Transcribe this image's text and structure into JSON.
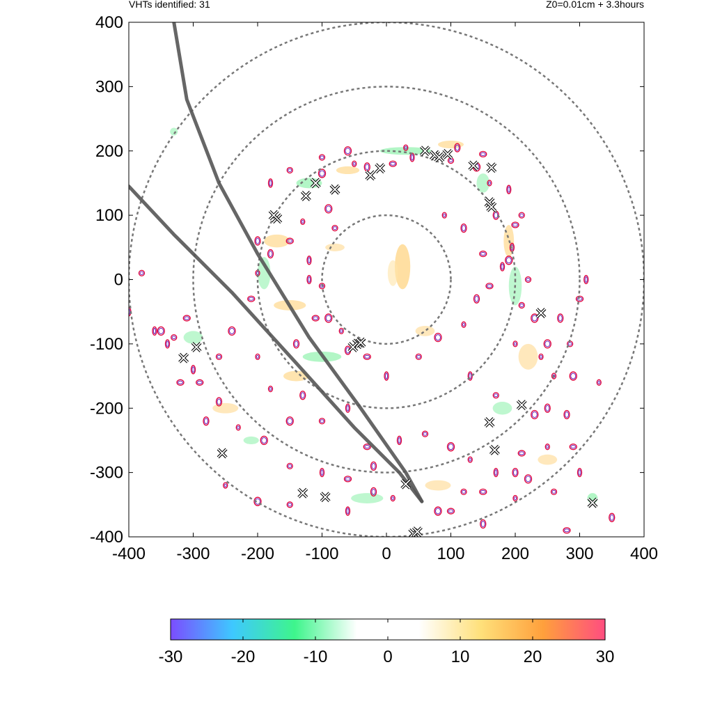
{
  "header": {
    "left_text": "VHTs identified: 31",
    "right_text": "Z0=0.01cm  + 3.3hours"
  },
  "chart_data": {
    "type": "scatter",
    "title": "",
    "xlabel": "",
    "ylabel": "",
    "xlim": [
      -400,
      400
    ],
    "ylim": [
      -400,
      400
    ],
    "x_ticks": [
      "-400",
      "-300",
      "-200",
      "-100",
      "0",
      "100",
      "200",
      "300",
      "400"
    ],
    "y_ticks": [
      "400",
      "300",
      "200",
      "100",
      "0",
      "-100",
      "-200",
      "-300",
      "-400"
    ],
    "grid": false,
    "range_rings": [
      100,
      200,
      300,
      400
    ],
    "tracks": [
      {
        "points": [
          [
            -330,
            400
          ],
          [
            -310,
            280
          ],
          [
            -260,
            150
          ],
          [
            -200,
            40
          ],
          [
            -120,
            -90
          ],
          [
            -40,
            -200
          ],
          [
            30,
            -300
          ],
          [
            55,
            -345
          ]
        ]
      },
      {
        "points": [
          [
            -400,
            145
          ],
          [
            -330,
            70
          ],
          [
            -240,
            -20
          ],
          [
            -140,
            -130
          ],
          [
            -50,
            -230
          ],
          [
            20,
            -300
          ],
          [
            55,
            -345
          ]
        ]
      }
    ],
    "vht_count": 31,
    "vht_markers": [
      [
        75,
        193
      ],
      [
        82,
        190
      ],
      [
        95,
        195
      ],
      [
        135,
        177
      ],
      [
        163,
        174
      ],
      [
        160,
        120
      ],
      [
        163,
        113
      ],
      [
        -25,
        162
      ],
      [
        -10,
        173
      ],
      [
        -80,
        140
      ],
      [
        -110,
        150
      ],
      [
        -125,
        130
      ],
      [
        -170,
        95
      ],
      [
        240,
        -52
      ],
      [
        -45,
        -100
      ],
      [
        -52,
        -105
      ],
      [
        -295,
        -105
      ],
      [
        -315,
        -122
      ],
      [
        210,
        -195
      ],
      [
        160,
        -222
      ],
      [
        168,
        -265
      ],
      [
        -255,
        -270
      ],
      [
        -130,
        -332
      ],
      [
        -95,
        -338
      ],
      [
        30,
        -318
      ],
      [
        320,
        -347
      ],
      [
        42,
        -395
      ],
      [
        48,
        -392
      ],
      [
        -40,
        -98
      ],
      [
        60,
        200
      ],
      [
        -175,
        100
      ]
    ],
    "contours": [
      [
        -50,
        180
      ],
      [
        -30,
        175
      ],
      [
        10,
        180
      ],
      [
        40,
        190
      ],
      [
        100,
        185
      ],
      [
        140,
        175
      ],
      [
        160,
        150
      ],
      [
        170,
        100
      ],
      [
        200,
        85
      ],
      [
        195,
        50
      ],
      [
        210,
        -40
      ],
      [
        230,
        -60
      ],
      [
        240,
        -120
      ],
      [
        250,
        -200
      ],
      [
        210,
        -270
      ],
      [
        170,
        -300
      ],
      [
        120,
        -330
      ],
      [
        80,
        -360
      ],
      [
        10,
        -340
      ],
      [
        -20,
        -330
      ],
      [
        -60,
        -310
      ],
      [
        -100,
        -300
      ],
      [
        -150,
        -290
      ],
      [
        -190,
        -250
      ],
      [
        -230,
        -230
      ],
      [
        -260,
        -190
      ],
      [
        -290,
        -160
      ],
      [
        -300,
        -140
      ],
      [
        -330,
        -90
      ],
      [
        -350,
        -80
      ],
      [
        -200,
        10
      ],
      [
        -180,
        40
      ],
      [
        -150,
        60
      ],
      [
        -120,
        30
      ],
      [
        -100,
        -10
      ],
      [
        -90,
        -60
      ],
      [
        -70,
        -80
      ],
      [
        -60,
        -110
      ],
      [
        -30,
        -120
      ],
      [
        0,
        -150
      ],
      [
        50,
        -120
      ],
      [
        80,
        -90
      ],
      [
        120,
        -70
      ],
      [
        140,
        -30
      ],
      [
        160,
        -10
      ],
      [
        180,
        20
      ],
      [
        220,
        0
      ],
      [
        250,
        -100
      ],
      [
        260,
        -150
      ],
      [
        280,
        -210
      ],
      [
        290,
        -260
      ],
      [
        300,
        -300
      ],
      [
        260,
        -330
      ],
      [
        220,
        -310
      ],
      [
        200,
        -340
      ],
      [
        150,
        -380
      ],
      [
        100,
        -360
      ],
      [
        -60,
        -360
      ],
      [
        -150,
        -350
      ],
      [
        -200,
        -345
      ],
      [
        -250,
        -320
      ],
      [
        -280,
        -220
      ],
      [
        -320,
        -160
      ],
      [
        -360,
        -80
      ],
      [
        -150,
        170
      ],
      [
        -100,
        165
      ],
      [
        30,
        205
      ],
      [
        110,
        205
      ],
      [
        150,
        195
      ],
      [
        190,
        140
      ],
      [
        210,
        100
      ],
      [
        190,
        30
      ],
      [
        200,
        -100
      ],
      [
        270,
        -60
      ],
      [
        300,
        -30
      ],
      [
        310,
        0
      ],
      [
        285,
        -100
      ],
      [
        290,
        -150
      ],
      [
        330,
        -160
      ],
      [
        350,
        -370
      ],
      [
        280,
        -390
      ],
      [
        -60,
        -200
      ],
      [
        -100,
        -220
      ],
      [
        -150,
        -220
      ],
      [
        -180,
        -170
      ],
      [
        -130,
        -180
      ],
      [
        -30,
        -260
      ],
      [
        20,
        -250
      ],
      [
        60,
        -240
      ],
      [
        100,
        -260
      ],
      [
        130,
        -280
      ],
      [
        -20,
        -290
      ],
      [
        -310,
        -60
      ],
      [
        -340,
        -100
      ],
      [
        -260,
        -120
      ],
      [
        -240,
        -80
      ],
      [
        -200,
        -120
      ],
      [
        -140,
        -100
      ],
      [
        -110,
        -60
      ],
      [
        -120,
        0
      ],
      [
        -80,
        80
      ],
      [
        -90,
        110
      ],
      [
        -130,
        90
      ],
      [
        -200,
        60
      ],
      [
        -210,
        -30
      ],
      [
        -180,
        150
      ],
      [
        -100,
        190
      ],
      [
        -60,
        200
      ],
      [
        90,
        100
      ],
      [
        120,
        80
      ],
      [
        150,
        40
      ],
      [
        130,
        -150
      ],
      [
        170,
        -180
      ],
      [
        230,
        -210
      ],
      [
        250,
        -260
      ],
      [
        200,
        -300
      ],
      [
        150,
        -330
      ],
      [
        -400,
        -50
      ],
      [
        -380,
        10
      ]
    ],
    "shading": [
      [
        25,
        20,
        12,
        35,
        "#ffd27a",
        0.7
      ],
      [
        10,
        10,
        8,
        20,
        "#ffe4a8",
        0.6
      ],
      [
        -120,
        150,
        20,
        8,
        "#7ef0a0",
        0.6
      ],
      [
        -60,
        170,
        18,
        6,
        "#ffd27a",
        0.6
      ],
      [
        30,
        200,
        40,
        6,
        "#7ef0a0",
        0.6
      ],
      [
        -170,
        60,
        20,
        10,
        "#ffd27a",
        0.6
      ],
      [
        -190,
        10,
        10,
        25,
        "#7ef0a0",
        0.5
      ],
      [
        -150,
        -40,
        25,
        8,
        "#ffd27a",
        0.6
      ],
      [
        -100,
        -120,
        30,
        8,
        "#7ef0a0",
        0.6
      ],
      [
        -140,
        -150,
        20,
        8,
        "#ffd27a",
        0.6
      ],
      [
        200,
        -10,
        10,
        30,
        "#7ef0a0",
        0.5
      ],
      [
        190,
        60,
        8,
        25,
        "#ffd27a",
        0.6
      ],
      [
        220,
        -120,
        15,
        20,
        "#ffd27a",
        0.5
      ],
      [
        180,
        -200,
        15,
        10,
        "#7ef0a0",
        0.5
      ],
      [
        -30,
        -340,
        25,
        8,
        "#7ef0a0",
        0.5
      ],
      [
        80,
        -320,
        20,
        8,
        "#ffd27a",
        0.5
      ],
      [
        -250,
        -200,
        20,
        8,
        "#ffd27a",
        0.5
      ],
      [
        -300,
        -90,
        15,
        10,
        "#7ef0a0",
        0.5
      ],
      [
        100,
        210,
        20,
        6,
        "#ffd27a",
        0.6
      ],
      [
        150,
        150,
        10,
        15,
        "#7ef0a0",
        0.5
      ],
      [
        -80,
        50,
        15,
        6,
        "#ffd27a",
        0.5
      ],
      [
        60,
        -80,
        15,
        8,
        "#ffd27a",
        0.5
      ],
      [
        -210,
        -250,
        12,
        6,
        "#7ef0a0",
        0.5
      ],
      [
        250,
        -280,
        15,
        8,
        "#ffd27a",
        0.5
      ],
      [
        -330,
        230,
        6,
        6,
        "#7ef0a0",
        0.5
      ],
      [
        320,
        -340,
        8,
        8,
        "#7ef0a0",
        0.6
      ]
    ],
    "colorbar": {
      "min": -30,
      "max": 30,
      "ticks": [
        "-30",
        "-20",
        "-10",
        "0",
        "10",
        "20",
        "30"
      ],
      "colors": [
        "#7b4dff",
        "#3ec8ff",
        "#3ef58c",
        "#ffffff",
        "#ffffff",
        "#ffe07a",
        "#ffa03c",
        "#ff4d80"
      ]
    },
    "colors": {
      "ring": "#777777",
      "track": "#555555",
      "contour_outer": "#e0003a",
      "contour_inner": "#6a1fb8"
    }
  }
}
